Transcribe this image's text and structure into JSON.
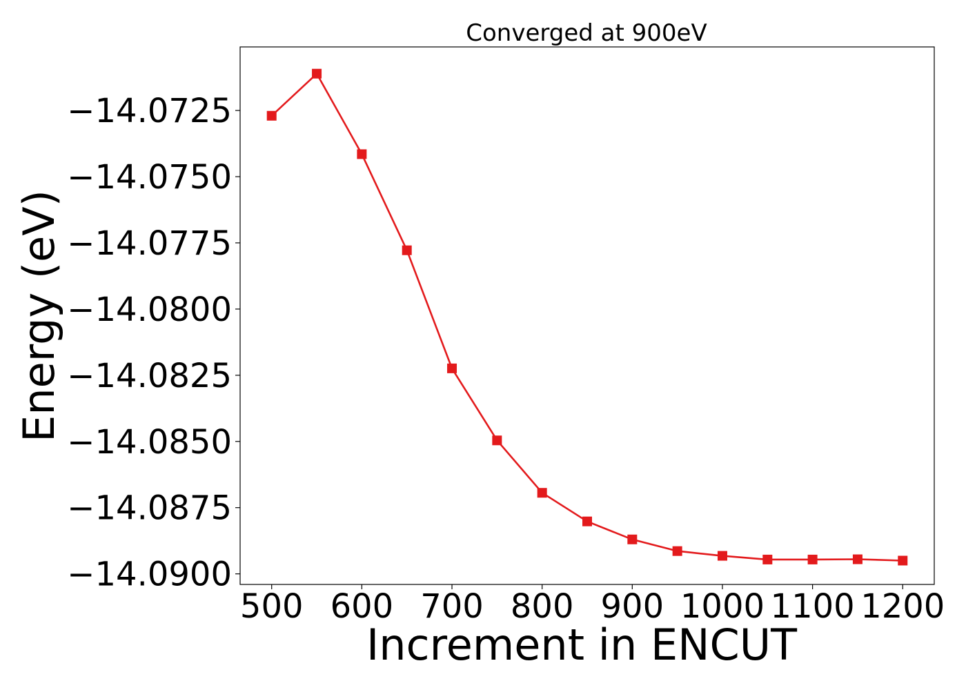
{
  "chart_data": {
    "type": "line",
    "title": "Converged at 900eV",
    "xlabel": "Increment in ENCUT",
    "ylabel": "Energy (eV)",
    "xlim": [
      465,
      1235
    ],
    "ylim": [
      -14.0904,
      -14.0701
    ],
    "x_ticks": [
      500,
      600,
      700,
      800,
      900,
      1000,
      1100,
      1200
    ],
    "x_tick_labels": [
      "500",
      "600",
      "700",
      "800",
      "900",
      "1000",
      "1100",
      "1200"
    ],
    "y_ticks": [
      -14.0725,
      -14.075,
      -14.0775,
      -14.08,
      -14.0825,
      -14.085,
      -14.0875,
      -14.09
    ],
    "y_tick_labels": [
      "−14.0725",
      "−14.0750",
      "−14.0775",
      "−14.0800",
      "−14.0825",
      "−14.0850",
      "−14.0875",
      "−14.0900"
    ],
    "grid": false,
    "series": [
      {
        "color": "#e31a1c",
        "marker": "square",
        "x": [
          500,
          550,
          600,
          650,
          700,
          750,
          800,
          850,
          900,
          950,
          1000,
          1050,
          1100,
          1150,
          1200
        ],
        "y": [
          -14.0727,
          -14.07111,
          -14.07415,
          -14.07778,
          -14.08224,
          -14.08496,
          -14.08694,
          -14.08802,
          -14.0887,
          -14.08914,
          -14.08932,
          -14.08946,
          -14.08946,
          -14.08945,
          -14.0895
        ]
      }
    ]
  }
}
